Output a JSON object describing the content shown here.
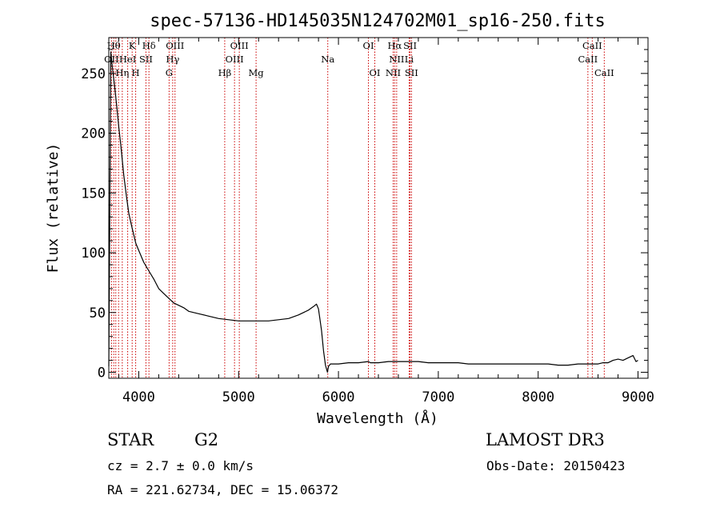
{
  "chart_data": {
    "type": "line",
    "title": "spec-57136-HD145035N124702M01_sp16-250.fits",
    "xlabel": "Wavelength (Å)",
    "ylabel": "Flux (relative)",
    "xlim": [
      3700,
      9100
    ],
    "ylim": [
      -5,
      280
    ],
    "x_ticks": [
      4000,
      5000,
      6000,
      7000,
      8000,
      9000
    ],
    "y_ticks": [
      0,
      50,
      100,
      150,
      200,
      250
    ],
    "x_tick_labels": [
      "4000",
      "5000",
      "6000",
      "7000",
      "8000",
      "9000"
    ],
    "y_tick_labels": [
      "0",
      "50",
      "100",
      "150",
      "200",
      "250"
    ],
    "grid": false,
    "series": [
      {
        "color": "#000000",
        "x": [
          3700,
          3720,
          3740,
          3760,
          3780,
          3800,
          3820,
          3850,
          3880,
          3900,
          3930,
          3950,
          3970,
          4000,
          4050,
          4100,
          4150,
          4200,
          4250,
          4300,
          4350,
          4400,
          4450,
          4500,
          4600,
          4700,
          4800,
          4900,
          5000,
          5100,
          5200,
          5300,
          5400,
          5500,
          5600,
          5700,
          5750,
          5780,
          5800,
          5830,
          5850,
          5870,
          5890,
          5900,
          5920,
          5950,
          6000,
          6100,
          6200,
          6300,
          6320,
          6400,
          6500,
          6600,
          6700,
          6800,
          6900,
          7000,
          7100,
          7200,
          7300,
          7400,
          7500,
          7600,
          7700,
          7800,
          7900,
          8000,
          8100,
          8200,
          8300,
          8400,
          8500,
          8600,
          8650,
          8700,
          8750,
          8800,
          8850,
          8900,
          8950,
          8980,
          9000
        ],
        "y": [
          5,
          268,
          252,
          238,
          222,
          205,
          190,
          165,
          145,
          133,
          122,
          115,
          108,
          102,
          92,
          85,
          78,
          70,
          66,
          62,
          58,
          56,
          54,
          51,
          49,
          47,
          45,
          44,
          43,
          43,
          43,
          43,
          44,
          45,
          48,
          52,
          55,
          57,
          53,
          35,
          18,
          6,
          0,
          5,
          7,
          7,
          7,
          8,
          8,
          9,
          8,
          8,
          9,
          9,
          9,
          9,
          8,
          8,
          8,
          8,
          7,
          7,
          7,
          7,
          7,
          7,
          7,
          7,
          7,
          6,
          6,
          7,
          7,
          7,
          8,
          8,
          10,
          11,
          10,
          12,
          14,
          9,
          10
        ]
      }
    ],
    "line_markers": {
      "color": "#cc0000",
      "wavelengths": [
        3727,
        3750,
        3770,
        3798,
        3835,
        3889,
        3934,
        3969,
        4072,
        4102,
        4304,
        4340,
        4363,
        4861,
        4959,
        5007,
        5175,
        5893,
        6300,
        6364,
        6548,
        6563,
        6583,
        6708,
        6717,
        6731,
        8498,
        8542,
        8662
      ],
      "labels": [
        {
          "text": "Hθ",
          "x": 3750,
          "row": 1
        },
        {
          "text": "K",
          "x": 3934,
          "row": 1
        },
        {
          "text": "Hδ",
          "x": 4102,
          "row": 1
        },
        {
          "text": "OIII",
          "x": 4363,
          "row": 1
        },
        {
          "text": "OIII",
          "x": 5007,
          "row": 1
        },
        {
          "text": "OI",
          "x": 6300,
          "row": 1
        },
        {
          "text": "Hα",
          "x": 6563,
          "row": 1
        },
        {
          "text": "SII",
          "x": 6717,
          "row": 1
        },
        {
          "text": "CaII",
          "x": 8542,
          "row": 1
        },
        {
          "text": "OII",
          "x": 3727,
          "row": 2
        },
        {
          "text": "HeI",
          "x": 3889,
          "row": 2
        },
        {
          "text": "SII",
          "x": 4072,
          "row": 2
        },
        {
          "text": "Hγ",
          "x": 4340,
          "row": 2
        },
        {
          "text": "OIII",
          "x": 4959,
          "row": 2
        },
        {
          "text": "Na",
          "x": 5893,
          "row": 2
        },
        {
          "text": "NII",
          "x": 6583,
          "row": 2
        },
        {
          "text": "Li",
          "x": 6708,
          "row": 2
        },
        {
          "text": "CaII",
          "x": 8498,
          "row": 2
        },
        {
          "text": "Hη",
          "x": 3835,
          "row": 3
        },
        {
          "text": "H",
          "x": 3969,
          "row": 3
        },
        {
          "text": "G",
          "x": 4304,
          "row": 3
        },
        {
          "text": "Hβ",
          "x": 4861,
          "row": 3
        },
        {
          "text": "Mg",
          "x": 5175,
          "row": 3
        },
        {
          "text": "OI",
          "x": 6364,
          "row": 3
        },
        {
          "text": "NII",
          "x": 6548,
          "row": 3
        },
        {
          "text": "SII",
          "x": 6731,
          "row": 3
        },
        {
          "text": "CaII",
          "x": 8662,
          "row": 3
        }
      ]
    }
  },
  "info": {
    "class_label": "STAR",
    "subclass": "G2",
    "survey": "LAMOST DR3",
    "redshift": "cz = 2.7 ± 0.0 km/s",
    "obs_date": "Obs-Date: 20150423",
    "coords": "RA = 221.62734, DEC =  15.06372"
  }
}
